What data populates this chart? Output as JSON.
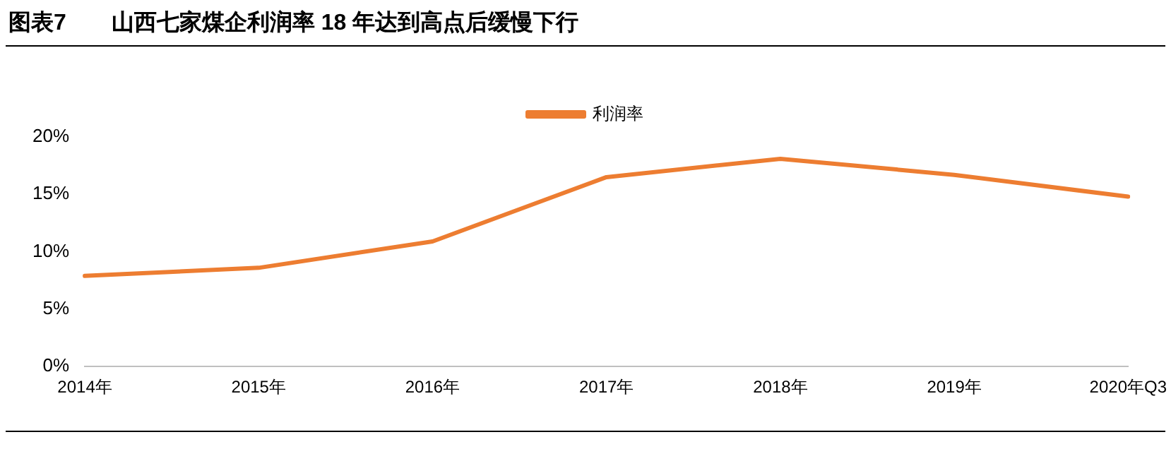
{
  "chart_data": {
    "type": "line",
    "title": "图表7　　山西七家煤企利润率 18 年达到高点后缓慢下行",
    "categories": [
      "2014年",
      "2015年",
      "2016年",
      "2017年",
      "2018年",
      "2019年",
      "2020年Q3"
    ],
    "series": [
      {
        "name": "利润率",
        "color": "#ed7d31",
        "values": [
          7.9,
          8.6,
          10.9,
          16.5,
          18.1,
          16.7,
          14.8
        ]
      }
    ],
    "ylim": [
      0,
      20
    ],
    "yticks": [
      {
        "value": 0,
        "label": "0%"
      },
      {
        "value": 5,
        "label": "5%"
      },
      {
        "value": 10,
        "label": "10%"
      },
      {
        "value": 15,
        "label": "15%"
      },
      {
        "value": 20,
        "label": "20%"
      }
    ],
    "grid": false,
    "legend": "top",
    "marker": "none",
    "line_style": "solid"
  }
}
